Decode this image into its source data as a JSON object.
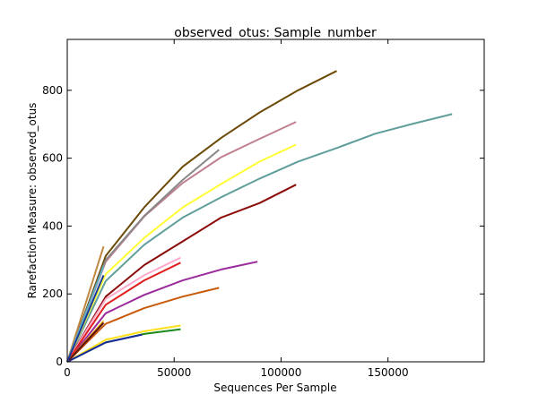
{
  "chart_data": {
    "type": "line",
    "title": "observed_otus: Sample_number",
    "xlabel": "Sequences Per Sample",
    "ylabel": "Rarefaction Measure: observed_otus",
    "xlim": [
      0,
      195000
    ],
    "ylim": [
      0,
      950
    ],
    "x_ticks": [
      0,
      50000,
      100000,
      150000
    ],
    "x_tick_labels": [
      "0",
      "50000",
      "100000",
      "150000"
    ],
    "y_ticks": [
      0,
      200,
      400,
      600,
      800
    ],
    "y_tick_labels": [
      "0",
      "200",
      "400",
      "600",
      "800"
    ],
    "grid": false,
    "legend": "none",
    "series": [
      {
        "color": "#6b4a08",
        "x": [
          0,
          18000,
          36000,
          54000,
          72000,
          90000,
          108000,
          126000
        ],
        "y": [
          0,
          312,
          455,
          575,
          660,
          735,
          800,
          857
        ]
      },
      {
        "color": "#5f9e9a",
        "x": [
          0,
          18000,
          36000,
          54000,
          72000,
          90000,
          108000,
          126000,
          144000,
          162000,
          180000
        ],
        "y": [
          0,
          238,
          345,
          425,
          485,
          540,
          590,
          630,
          672,
          702,
          730
        ]
      },
      {
        "color": "#c08090",
        "x": [
          0,
          18000,
          36000,
          54000,
          72000,
          90000,
          107000
        ],
        "y": [
          0,
          295,
          428,
          527,
          603,
          657,
          707
        ]
      },
      {
        "color": "#ffff33",
        "x": [
          0,
          18000,
          36000,
          54000,
          72000,
          90000,
          107000
        ],
        "y": [
          0,
          258,
          365,
          455,
          524,
          590,
          640
        ]
      },
      {
        "color": "#8b0a0a",
        "x": [
          0,
          18000,
          36000,
          54000,
          72000,
          90000,
          107000
        ],
        "y": [
          0,
          192,
          285,
          355,
          425,
          468,
          522
        ]
      },
      {
        "color": "#888888",
        "x": [
          0,
          18000,
          36000,
          54000,
          71000
        ],
        "y": [
          0,
          300,
          430,
          536,
          625
        ]
      },
      {
        "color": "#9b2a9b",
        "x": [
          0,
          18000,
          36000,
          54000,
          72000,
          89000
        ],
        "y": [
          0,
          143,
          197,
          240,
          272,
          295
        ]
      },
      {
        "color": "#ffaacc",
        "x": [
          0,
          18000,
          36000,
          53000
        ],
        "y": [
          0,
          185,
          255,
          307
        ]
      },
      {
        "color": "#e01e1e",
        "x": [
          0,
          18000,
          36000,
          53000
        ],
        "y": [
          0,
          168,
          240,
          292
        ]
      },
      {
        "color": "#c85a0a",
        "x": [
          0,
          18000,
          36000,
          54000,
          71000
        ],
        "y": [
          0,
          112,
          158,
          192,
          218
        ]
      },
      {
        "color": "#ffe01a",
        "x": [
          0,
          18000,
          36000,
          53000
        ],
        "y": [
          0,
          65,
          90,
          107
        ]
      },
      {
        "color": "#1a8a1a",
        "x": [
          0,
          18000,
          36000,
          53000
        ],
        "y": [
          0,
          57,
          82,
          96
        ]
      },
      {
        "color": "#1a2a9b",
        "x": [
          0,
          18000,
          35000
        ],
        "y": [
          0,
          57,
          80
        ]
      },
      {
        "color": "#e8b80a",
        "x": [
          0,
          17000
        ],
        "y": [
          0,
          120
        ]
      },
      {
        "color": "#5a0a0a",
        "x": [
          0,
          17000
        ],
        "y": [
          0,
          115
        ]
      },
      {
        "color": "#c08840",
        "x": [
          0,
          17000
        ],
        "y": [
          0,
          340
        ]
      },
      {
        "color": "#5fb0c8",
        "x": [
          0,
          17000
        ],
        "y": [
          0,
          283
        ]
      },
      {
        "color": "#1a3a9b",
        "x": [
          0,
          17000
        ],
        "y": [
          0,
          255
        ]
      }
    ]
  }
}
